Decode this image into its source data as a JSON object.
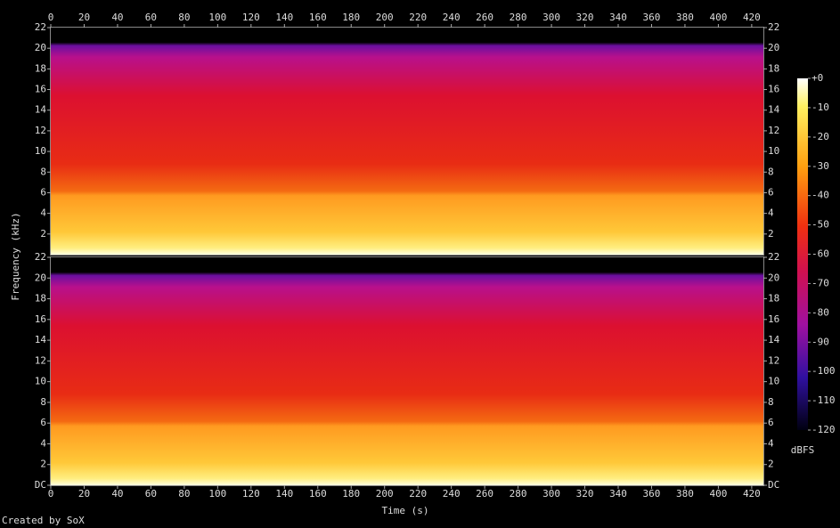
{
  "chart_data": {
    "type": "spectrogram",
    "xlabel": "Time (s)",
    "ylabel": "Frequency (kHz)",
    "xlim": [
      0,
      427
    ],
    "xticks": [
      0,
      20,
      40,
      60,
      80,
      100,
      120,
      140,
      160,
      180,
      200,
      220,
      240,
      260,
      280,
      300,
      320,
      340,
      360,
      380,
      400,
      420
    ],
    "panels": [
      {
        "ylim": [
          0,
          22
        ],
        "yticks": [
          2,
          4,
          6,
          8,
          10,
          12,
          14,
          16,
          18,
          20,
          22
        ]
      },
      {
        "ylim": [
          0,
          22
        ],
        "yticks": [
          {
            "value": 0,
            "label": "DC"
          },
          2,
          4,
          6,
          8,
          10,
          12,
          14,
          16,
          18,
          20,
          22
        ]
      }
    ],
    "colorbar": {
      "label": "dBFS",
      "lim": [
        -120,
        0
      ],
      "ticks": [
        {
          "value": 0,
          "label": "+0"
        },
        -10,
        -20,
        -30,
        -40,
        -50,
        -60,
        -70,
        -80,
        -90,
        -100,
        -110,
        -120
      ]
    },
    "credit": "Created by SoX"
  }
}
